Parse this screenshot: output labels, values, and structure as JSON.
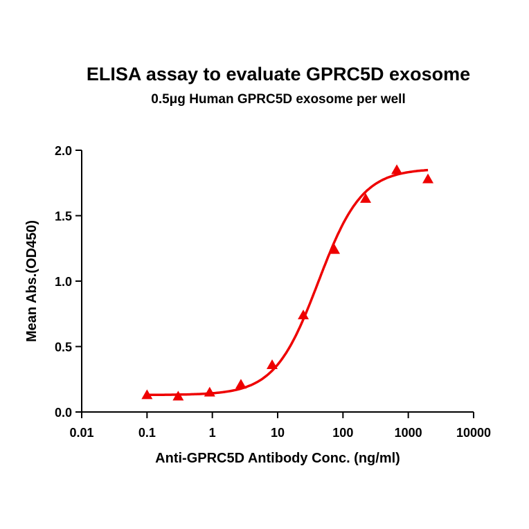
{
  "chart_data": {
    "type": "scatter",
    "title": "ELISA assay to evaluate GPRC5D exosome",
    "subtitle": "0.5μg Human GPRC5D exosome per well",
    "xlabel": "Anti-GPRC5D Antibody Conc. (ng/ml)",
    "ylabel": "Mean Abs.(OD450)",
    "xscale": "log",
    "xlim": [
      0.01,
      10000
    ],
    "ylim": [
      0,
      2.0
    ],
    "xticks": [
      "0.01",
      "0.1",
      "1",
      "10",
      "100",
      "1000",
      "10000"
    ],
    "yticks": [
      "0.0",
      "0.5",
      "1.0",
      "1.5",
      "2.0"
    ],
    "grid": false,
    "marker": "triangle",
    "color": "#ee0000",
    "fit_curve": "sigmoidal",
    "series": [
      {
        "x": [
          0.1,
          0.3,
          0.91,
          2.74,
          8.23,
          24.7,
          74.1,
          222.2,
          666.7,
          2000
        ],
        "y": [
          0.13,
          0.12,
          0.15,
          0.21,
          0.36,
          0.74,
          1.24,
          1.63,
          1.85,
          1.78
        ]
      }
    ]
  }
}
